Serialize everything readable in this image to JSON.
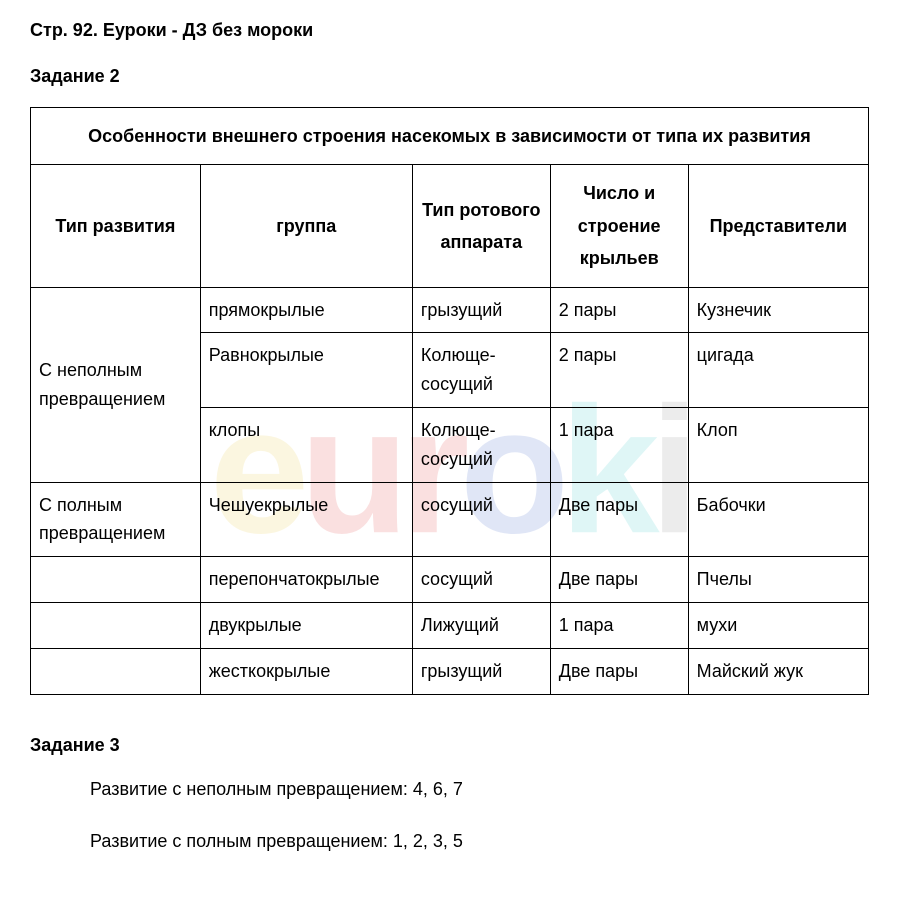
{
  "page_title": "Стр. 92. Еуроки - ДЗ без мороки",
  "task2": {
    "title": "Задание 2",
    "table_caption": "Особенности внешнего строения насекомых в зависимости от типа их развития",
    "headers": {
      "dev_type": "Тип развития",
      "group": "группа",
      "mouth": "Тип ротового аппарата",
      "wings": "Число и строение крыльев",
      "reps": "Представители"
    },
    "rows": [
      {
        "dev": "С неполным превращением",
        "dev_rowspan": 3,
        "group": "прямокрылые",
        "mouth": "грызущий",
        "wings": "2 пары",
        "rep": "Кузнечик"
      },
      {
        "group": "Равнокрылые",
        "mouth": "Колюще-сосущий",
        "wings": "2 пары",
        "rep": "цигада"
      },
      {
        "group": "клопы",
        "mouth": "Колюще-сосущий",
        "wings": "1 пара",
        "rep": "Клоп"
      },
      {
        "dev": "С полным превращением",
        "dev_rowspan": 1,
        "group": "Чешуекрылые",
        "mouth": "сосущий",
        "wings": "Две пары",
        "rep": "Бабочки"
      },
      {
        "dev": "",
        "dev_rowspan": 1,
        "group": "перепончатокрылые",
        "mouth": "сосущий",
        "wings": "Две пары",
        "rep": "Пчелы"
      },
      {
        "dev": "",
        "dev_rowspan": 1,
        "group": "двукрылые",
        "mouth": "Лижущий",
        "wings": "1 пара",
        "rep": "мухи"
      },
      {
        "dev": "",
        "dev_rowspan": 1,
        "group": "жесткокрылые",
        "mouth": "грызущий",
        "wings": "Две пары",
        "rep": "Майский жук"
      }
    ]
  },
  "task3": {
    "title": "Задание 3",
    "line1": "Развитие с неполным превращением:  4, 6, 7",
    "line2": "Развитие с полным превращением: 1, 2, 3, 5"
  },
  "watermark": {
    "chars": [
      "e",
      "u",
      "r",
      "o",
      "k",
      "i"
    ]
  }
}
